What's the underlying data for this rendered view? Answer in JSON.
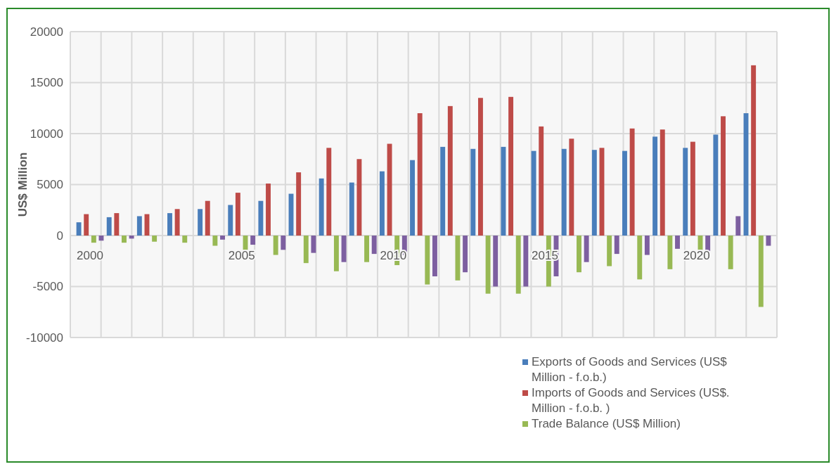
{
  "chart_data": {
    "type": "bar",
    "ylabel": "US$ Million",
    "categories": [
      "2000",
      null,
      null,
      null,
      null,
      "2005",
      null,
      null,
      null,
      null,
      "2010",
      null,
      null,
      null,
      null,
      "2015",
      null,
      null,
      null,
      null,
      "2020",
      null,
      null
    ],
    "series": [
      {
        "name": "Exports of Goods and Services (US$ Million - f.o.b.)",
        "color": "#4a7ebb",
        "values": [
          1300,
          1800,
          1900,
          2200,
          2600,
          3000,
          3400,
          4100,
          5600,
          5200,
          6300,
          7400,
          8700,
          8500,
          8700,
          8300,
          8500,
          8400,
          8300,
          9700,
          8600,
          9900,
          12000
        ]
      },
      {
        "name": "Imports of Goods and Services (US$. Million - f.o.b. )",
        "color": "#be4b48",
        "values": [
          2100,
          2200,
          2100,
          2600,
          3400,
          4200,
          5100,
          6200,
          8600,
          7500,
          9000,
          12000,
          12700,
          13500,
          13600,
          10700,
          9500,
          8600,
          10500,
          10400,
          9200,
          11700,
          16700
        ]
      },
      {
        "name": "Trade Balance (US$ Million)",
        "color": "#98b954",
        "values": [
          -700,
          -700,
          -600,
          -700,
          -1000,
          -1400,
          -1900,
          -2700,
          -3500,
          -2600,
          -2900,
          -4800,
          -4400,
          -5700,
          -5700,
          -5000,
          -3600,
          -3000,
          -4300,
          -3300,
          -1400,
          -3300,
          -7000
        ]
      },
      {
        "color": "#7d5fa0",
        "values": [
          -500,
          -300,
          null,
          null,
          -400,
          -900,
          -1400,
          -1700,
          -2600,
          -1800,
          -1900,
          -4000,
          -3600,
          -5000,
          -5000,
          -4000,
          -2600,
          -1800,
          -1900,
          -1300,
          -1500,
          1900,
          -1000
        ]
      }
    ],
    "ylim": [
      -10000,
      20000
    ],
    "yticks": [
      -10000,
      -5000,
      0,
      5000,
      10000,
      15000,
      20000
    ],
    "grid": true,
    "legend": "bottom right"
  }
}
